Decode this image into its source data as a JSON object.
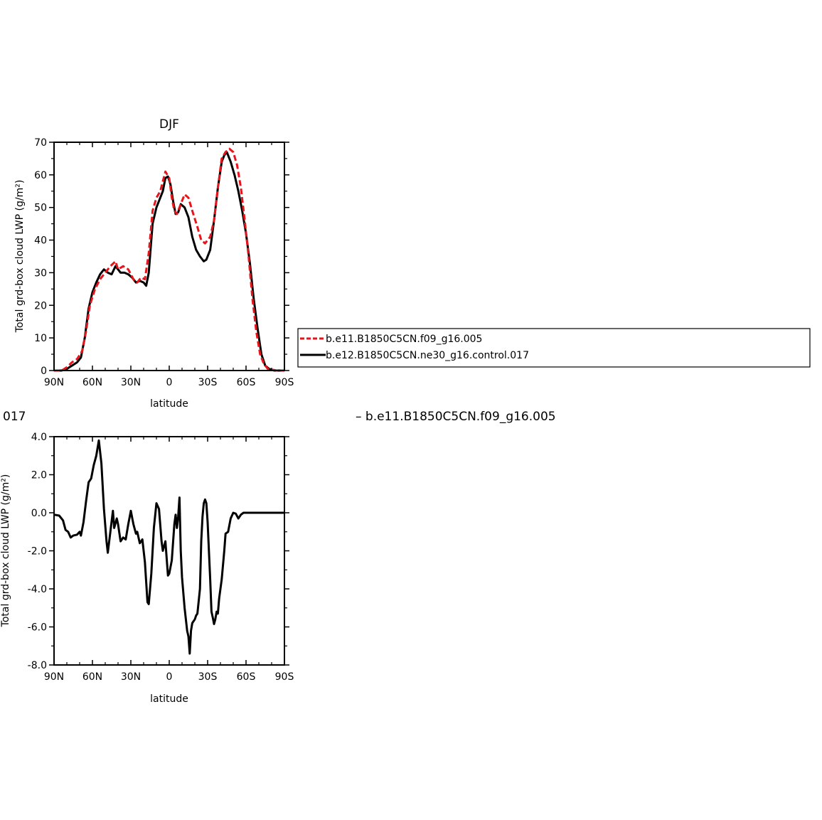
{
  "colors": {
    "frame": "#000000",
    "dashed_series": "#e8141b",
    "solid_series": "#000000"
  },
  "legend": {
    "entries": [
      {
        "label": "b.e11.B1850C5CN.f09_g16.005",
        "style": "dashed",
        "color": "#e8141b"
      },
      {
        "label": "b.e12.B1850C5CN.ne30_g16.control.017",
        "style": "solid",
        "color": "#000000"
      }
    ]
  },
  "bottom_header": {
    "left_fragment": "017",
    "right_text": "– b.e11.B1850C5CN.f09_g16.005"
  },
  "chart_data": [
    {
      "type": "line",
      "title": "DJF",
      "xlabel": "latitude",
      "ylabel": "Total grd-box cloud LWP (g/m²)",
      "xlim": [
        90,
        -90
      ],
      "ylim": [
        0,
        70
      ],
      "xticks": [
        {
          "value": 90,
          "label": "90N"
        },
        {
          "value": 60,
          "label": "60N"
        },
        {
          "value": 30,
          "label": "30N"
        },
        {
          "value": 0,
          "label": "0"
        },
        {
          "value": -30,
          "label": "30S"
        },
        {
          "value": -60,
          "label": "60S"
        },
        {
          "value": -90,
          "label": "90S"
        }
      ],
      "yticks": [
        {
          "value": 0,
          "label": "0"
        },
        {
          "value": 10,
          "label": "10"
        },
        {
          "value": 20,
          "label": "20"
        },
        {
          "value": 30,
          "label": "30"
        },
        {
          "value": 40,
          "label": "40"
        },
        {
          "value": 50,
          "label": "50"
        },
        {
          "value": 60,
          "label": "60"
        },
        {
          "value": 70,
          "label": "70"
        }
      ],
      "series": [
        {
          "name": "b.e11.B1850C5CN.f09_g16.005",
          "color": "#e8141b",
          "dash": true,
          "points": [
            [
              90,
              0
            ],
            [
              84,
              0
            ],
            [
              80,
              1
            ],
            [
              76,
              2.5
            ],
            [
              72,
              3.5
            ],
            [
              68,
              6
            ],
            [
              65,
              12
            ],
            [
              62,
              20
            ],
            [
              58,
              25
            ],
            [
              54,
              28
            ],
            [
              50,
              30
            ],
            [
              46,
              32
            ],
            [
              42,
              33.5
            ],
            [
              40,
              31
            ],
            [
              36,
              32
            ],
            [
              32,
              31
            ],
            [
              28,
              28
            ],
            [
              25,
              27
            ],
            [
              22,
              28.5
            ],
            [
              19,
              28
            ],
            [
              16,
              36
            ],
            [
              13,
              49
            ],
            [
              10,
              53
            ],
            [
              7,
              55
            ],
            [
              5,
              58
            ],
            [
              3,
              61
            ],
            [
              0,
              59
            ],
            [
              -2,
              53
            ],
            [
              -4,
              49
            ],
            [
              -6,
              48
            ],
            [
              -9,
              51
            ],
            [
              -12,
              54
            ],
            [
              -15,
              53
            ],
            [
              -18,
              49
            ],
            [
              -22,
              44
            ],
            [
              -25,
              40
            ],
            [
              -28,
              39
            ],
            [
              -32,
              41
            ],
            [
              -35,
              46
            ],
            [
              -38,
              56
            ],
            [
              -41,
              65
            ],
            [
              -44,
              67
            ],
            [
              -47,
              68
            ],
            [
              -50,
              67
            ],
            [
              -53,
              63
            ],
            [
              -56,
              56
            ],
            [
              -59,
              46
            ],
            [
              -62,
              35
            ],
            [
              -65,
              22
            ],
            [
              -68,
              12
            ],
            [
              -71,
              5
            ],
            [
              -74,
              2
            ],
            [
              -77,
              0.5
            ],
            [
              -80,
              0.3
            ],
            [
              -84,
              0
            ],
            [
              -90,
              0
            ]
          ]
        },
        {
          "name": "b.e12.B1850C5CN.ne30_g16.control.017",
          "color": "#000000",
          "dash": false,
          "points": [
            [
              90,
              0
            ],
            [
              84,
              0
            ],
            [
              80,
              0.5
            ],
            [
              76,
              1.5
            ],
            [
              72,
              2.5
            ],
            [
              69,
              4
            ],
            [
              66,
              10
            ],
            [
              63,
              19
            ],
            [
              60,
              24
            ],
            [
              57,
              27
            ],
            [
              54,
              29.5
            ],
            [
              51,
              31
            ],
            [
              48,
              30
            ],
            [
              45,
              29.5
            ],
            [
              42,
              32
            ],
            [
              40,
              31
            ],
            [
              38,
              30
            ],
            [
              35,
              30
            ],
            [
              32,
              29.5
            ],
            [
              29,
              28.5
            ],
            [
              26,
              27
            ],
            [
              23,
              27.5
            ],
            [
              20,
              27
            ],
            [
              18,
              26
            ],
            [
              16,
              30
            ],
            [
              13,
              45
            ],
            [
              10,
              50
            ],
            [
              7,
              53
            ],
            [
              5,
              55
            ],
            [
              3,
              59
            ],
            [
              1,
              59.5
            ],
            [
              -1,
              57
            ],
            [
              -3,
              52
            ],
            [
              -5,
              48
            ],
            [
              -7,
              48.5
            ],
            [
              -9,
              51
            ],
            [
              -12,
              50
            ],
            [
              -15,
              47
            ],
            [
              -18,
              41
            ],
            [
              -21,
              37
            ],
            [
              -24,
              35
            ],
            [
              -27,
              33.5
            ],
            [
              -29,
              34
            ],
            [
              -32,
              37
            ],
            [
              -35,
              46
            ],
            [
              -38,
              56
            ],
            [
              -41,
              64
            ],
            [
              -43,
              66
            ],
            [
              -45,
              67
            ],
            [
              -48,
              64
            ],
            [
              -51,
              60
            ],
            [
              -54,
              55
            ],
            [
              -57,
              49
            ],
            [
              -60,
              42
            ],
            [
              -63,
              33
            ],
            [
              -66,
              22
            ],
            [
              -69,
              13
            ],
            [
              -72,
              5
            ],
            [
              -75,
              1.5
            ],
            [
              -78,
              0.5
            ],
            [
              -82,
              0
            ],
            [
              -90,
              0
            ]
          ]
        }
      ]
    },
    {
      "type": "line",
      "xlabel": "latitude",
      "ylabel": "Total grd-box cloud LWP (g/m²)",
      "xlim": [
        90,
        -90
      ],
      "ylim": [
        -8,
        4
      ],
      "xticks": [
        {
          "value": 90,
          "label": "90N"
        },
        {
          "value": 60,
          "label": "60N"
        },
        {
          "value": 30,
          "label": "30N"
        },
        {
          "value": 0,
          "label": "0"
        },
        {
          "value": -30,
          "label": "30S"
        },
        {
          "value": -60,
          "label": "60S"
        },
        {
          "value": -90,
          "label": "90S"
        }
      ],
      "yticks": [
        {
          "value": -8,
          "label": "-8.0"
        },
        {
          "value": -6,
          "label": "-6.0"
        },
        {
          "value": -4,
          "label": "-4.0"
        },
        {
          "value": -2,
          "label": "-2.0"
        },
        {
          "value": 0,
          "label": "0.0"
        },
        {
          "value": 2,
          "label": "2.0"
        },
        {
          "value": 4,
          "label": "4.0"
        }
      ],
      "series": [
        {
          "color": "#000000",
          "dash": false,
          "points": [
            [
              90,
              -0.1
            ],
            [
              86,
              -0.15
            ],
            [
              83,
              -0.4
            ],
            [
              81,
              -0.9
            ],
            [
              79,
              -1.0
            ],
            [
              77,
              -1.3
            ],
            [
              75,
              -1.2
            ],
            [
              72,
              -1.15
            ],
            [
              70,
              -1.0
            ],
            [
              69,
              -1.2
            ],
            [
              67,
              -0.5
            ],
            [
              65,
              0.6
            ],
            [
              63,
              1.6
            ],
            [
              61,
              1.8
            ],
            [
              59,
              2.5
            ],
            [
              57,
              3.0
            ],
            [
              55,
              3.8
            ],
            [
              53,
              2.6
            ],
            [
              51,
              0.2
            ],
            [
              49,
              -1.5
            ],
            [
              48,
              -2.1
            ],
            [
              46,
              -1.0
            ],
            [
              44,
              0.1
            ],
            [
              43,
              -0.8
            ],
            [
              41,
              -0.3
            ],
            [
              40,
              -0.6
            ],
            [
              38,
              -1.5
            ],
            [
              36,
              -1.3
            ],
            [
              34,
              -1.4
            ],
            [
              32,
              -0.6
            ],
            [
              30,
              0.1
            ],
            [
              28,
              -0.6
            ],
            [
              26,
              -1.1
            ],
            [
              25,
              -1.0
            ],
            [
              23,
              -1.6
            ],
            [
              21,
              -1.4
            ],
            [
              19,
              -2.6
            ],
            [
              17,
              -4.7
            ],
            [
              16,
              -4.8
            ],
            [
              14,
              -3.2
            ],
            [
              12,
              -0.8
            ],
            [
              10,
              0.5
            ],
            [
              8,
              0.2
            ],
            [
              6,
              -1.5
            ],
            [
              5,
              -2.0
            ],
            [
              3,
              -1.5
            ],
            [
              1,
              -3.3
            ],
            [
              0,
              -3.2
            ],
            [
              -2,
              -2.5
            ],
            [
              -4,
              -0.6
            ],
            [
              -5,
              -0.1
            ],
            [
              -6,
              -0.8
            ],
            [
              -7,
              -0.2
            ],
            [
              -8,
              0.8
            ],
            [
              -9,
              -2.0
            ],
            [
              -10,
              -3.4
            ],
            [
              -12,
              -5.0
            ],
            [
              -14,
              -6.2
            ],
            [
              -15,
              -6.5
            ],
            [
              -16,
              -7.4
            ],
            [
              -17,
              -6.2
            ],
            [
              -18,
              -5.8
            ],
            [
              -20,
              -5.6
            ],
            [
              -21,
              -5.4
            ],
            [
              -22,
              -5.3
            ],
            [
              -24,
              -4.0
            ],
            [
              -25,
              -1.5
            ],
            [
              -26,
              -0.2
            ],
            [
              -27,
              0.5
            ],
            [
              -28,
              0.7
            ],
            [
              -29,
              0.5
            ],
            [
              -30,
              -0.5
            ],
            [
              -31,
              -2.0
            ],
            [
              -32,
              -3.5
            ],
            [
              -33,
              -5.2
            ],
            [
              -34,
              -5.5
            ],
            [
              -35,
              -5.85
            ],
            [
              -36,
              -5.6
            ],
            [
              -37,
              -5.2
            ],
            [
              -38,
              -5.3
            ],
            [
              -39,
              -4.5
            ],
            [
              -41,
              -3.5
            ],
            [
              -43,
              -2.0
            ],
            [
              -44,
              -1.1
            ],
            [
              -46,
              -1.0
            ],
            [
              -48,
              -0.3
            ],
            [
              -50,
              0.0
            ],
            [
              -52,
              -0.05
            ],
            [
              -54,
              -0.3
            ],
            [
              -56,
              -0.1
            ],
            [
              -58,
              0.0
            ],
            [
              -60,
              0.0
            ],
            [
              -63,
              0.0
            ],
            [
              -70,
              0.0
            ],
            [
              -80,
              0.0
            ],
            [
              -90,
              0.0
            ]
          ]
        }
      ]
    }
  ]
}
